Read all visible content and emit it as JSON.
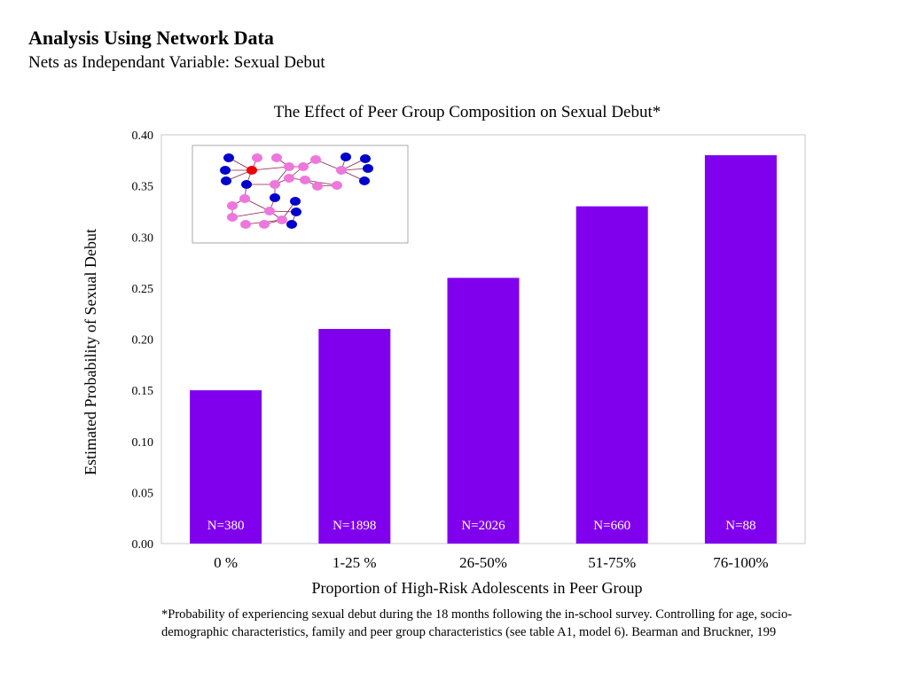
{
  "slide": {
    "title": "Analysis Using Network Data",
    "subtitle": "Nets as Independant Variable: Sexual Debut"
  },
  "footnote": "*Probability of experiencing sexual debut during the 18 months following the in-school survey. Controlling for age, socio-demographic characteristics, family and peer group characteristics (see table A1, model 6). Bearman and Bruckner, 199",
  "chart_data": {
    "type": "bar",
    "title": "The Effect of Peer Group Composition on Sexual Debut*",
    "xlabel": "Proportion of High-Risk Adolescents in Peer Group",
    "ylabel": "Estimated Probability of Sexual Debut",
    "categories": [
      "0 %",
      "1-25 %",
      "26-50%",
      "51-75%",
      "76-100%"
    ],
    "values": [
      0.15,
      0.21,
      0.26,
      0.33,
      0.38
    ],
    "bar_labels": [
      "N=380",
      "N=1898",
      "N=2026",
      "N=660",
      "N=88"
    ],
    "ylim": [
      0,
      0.4
    ],
    "yticks": [
      "0.00",
      "0.05",
      "0.10",
      "0.15",
      "0.20",
      "0.25",
      "0.30",
      "0.35",
      "0.40"
    ],
    "bar_color": "#8000ee",
    "grid": false,
    "legend": "none",
    "inset": "network diagram of pink, blue and red nodes"
  }
}
